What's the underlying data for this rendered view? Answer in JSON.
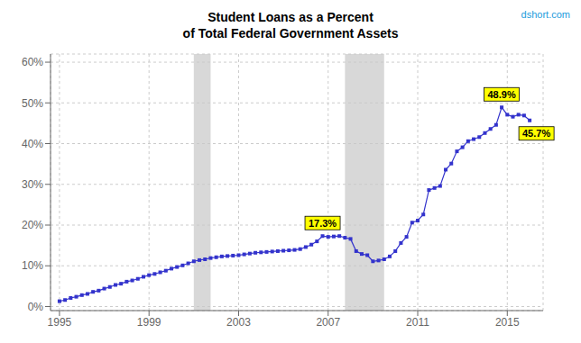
{
  "chart_data": {
    "type": "line",
    "title": "Student Loans as a Percent\nof Total Federal Government Assets",
    "x": [
      1995.0,
      1995.25,
      1995.5,
      1995.75,
      1996.0,
      1996.25,
      1996.5,
      1996.75,
      1997.0,
      1997.25,
      1997.5,
      1997.75,
      1998.0,
      1998.25,
      1998.5,
      1998.75,
      1999.0,
      1999.25,
      1999.5,
      1999.75,
      2000.0,
      2000.25,
      2000.5,
      2000.75,
      2001.0,
      2001.25,
      2001.5,
      2001.75,
      2002.0,
      2002.25,
      2002.5,
      2002.75,
      2003.0,
      2003.25,
      2003.5,
      2003.75,
      2004.0,
      2004.25,
      2004.5,
      2004.75,
      2005.0,
      2005.25,
      2005.5,
      2005.75,
      2006.0,
      2006.25,
      2006.5,
      2006.75,
      2007.0,
      2007.25,
      2007.5,
      2007.75,
      2008.0,
      2008.25,
      2008.5,
      2008.75,
      2009.0,
      2009.25,
      2009.5,
      2009.75,
      2010.0,
      2010.25,
      2010.5,
      2010.75,
      2011.0,
      2011.25,
      2011.5,
      2011.75,
      2012.0,
      2012.25,
      2012.5,
      2012.75,
      2013.0,
      2013.25,
      2013.5,
      2013.75,
      2014.0,
      2014.25,
      2014.5,
      2014.75,
      2015.0,
      2015.25,
      2015.5,
      2015.75,
      2016.0
    ],
    "values": [
      1.3,
      1.6,
      2.1,
      2.4,
      2.8,
      3.1,
      3.6,
      3.9,
      4.4,
      4.8,
      5.3,
      5.6,
      6.1,
      6.4,
      6.8,
      7.3,
      7.7,
      8.0,
      8.4,
      8.8,
      9.3,
      9.7,
      10.1,
      10.6,
      11.1,
      11.4,
      11.6,
      11.9,
      12.1,
      12.3,
      12.4,
      12.5,
      12.6,
      12.8,
      13.0,
      13.2,
      13.3,
      13.4,
      13.5,
      13.6,
      13.7,
      13.8,
      13.9,
      14.1,
      14.6,
      15.2,
      16.0,
      17.3,
      17.1,
      17.2,
      17.3,
      16.9,
      16.6,
      13.6,
      12.9,
      12.6,
      11.1,
      11.3,
      11.6,
      12.3,
      13.6,
      15.6,
      17.1,
      20.6,
      21.1,
      22.6,
      28.6,
      29.1,
      29.6,
      33.6,
      35.1,
      38.1,
      39.1,
      40.6,
      41.1,
      41.6,
      42.6,
      43.6,
      44.6,
      48.9,
      47.1,
      46.6,
      47.1,
      46.9,
      45.7
    ],
    "color": "#3333cc",
    "marker": "square",
    "recessions": [
      [
        2001.0,
        2001.75
      ],
      [
        2007.75,
        2009.5
      ]
    ],
    "annotations": [
      {
        "text": "17.3%",
        "x": 2006.75,
        "y": 17.3
      },
      {
        "text": "48.9%",
        "x": 2014.75,
        "y": 48.9
      },
      {
        "text": "45.7%",
        "x": 2016.0,
        "y": 45.7
      },
      {
        "text": "dshort.com"
      }
    ],
    "xlim": [
      1994.6,
      2016.6
    ],
    "xticks": [
      1995,
      1999,
      2003,
      2007,
      2011,
      2015
    ],
    "ylim": [
      -1,
      62
    ],
    "yticks": [
      {
        "value": 0,
        "label": "0%"
      },
      {
        "value": 10,
        "label": "10%"
      },
      {
        "value": 20,
        "label": "20%"
      },
      {
        "value": 30,
        "label": "30%"
      },
      {
        "value": 40,
        "label": "40%"
      },
      {
        "value": 50,
        "label": "50%"
      },
      {
        "value": 60,
        "label": "60%"
      }
    ],
    "grid": true
  }
}
